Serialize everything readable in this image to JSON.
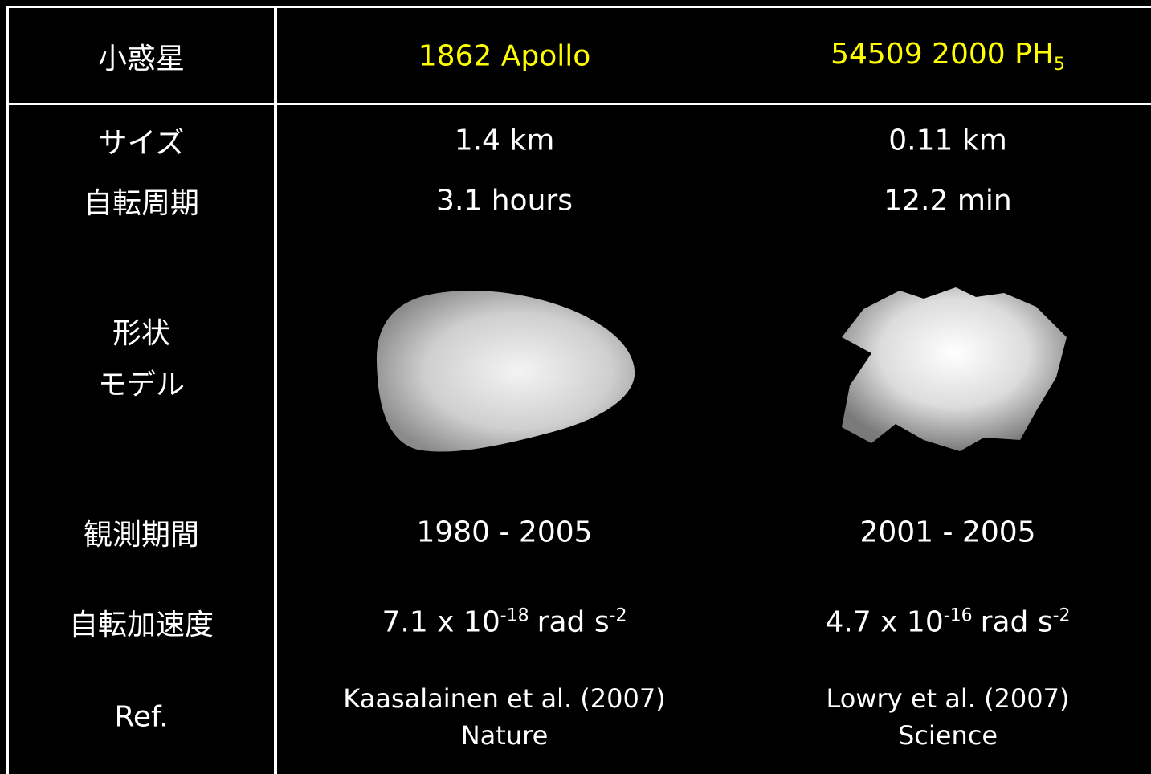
{
  "header": {
    "label": "小惑星",
    "apollo": "1862 Apollo",
    "ph5": {
      "text": "54509 2000 PH",
      "sub": "5"
    }
  },
  "rows": {
    "size": {
      "label": "サイズ",
      "apollo": "1.4 km",
      "ph5": "0.11 km"
    },
    "period": {
      "label": "自転周期",
      "apollo": "3.1 hours",
      "ph5": "12.2 min"
    },
    "shape": {
      "label": [
        "形状",
        "モデル"
      ]
    },
    "observation": {
      "label": "観測期間",
      "apollo": "1980 - 2005",
      "ph5": "2001 - 2005"
    },
    "acceleration": {
      "label": "自転加速度",
      "apollo": {
        "base": "7.1 x 10",
        "exp": "-18",
        "unit": "rad s",
        "unit_exp": "-2"
      },
      "ph5": {
        "base": "4.7 x 10",
        "exp": "-16",
        "unit": "rad s",
        "unit_exp": "-2"
      }
    },
    "ref": {
      "label": "Ref.",
      "apollo": [
        "Kaasalainen et al. (2007)",
        "Nature"
      ],
      "ph5": [
        "Lowry et al. (2007)",
        "Science"
      ]
    }
  }
}
